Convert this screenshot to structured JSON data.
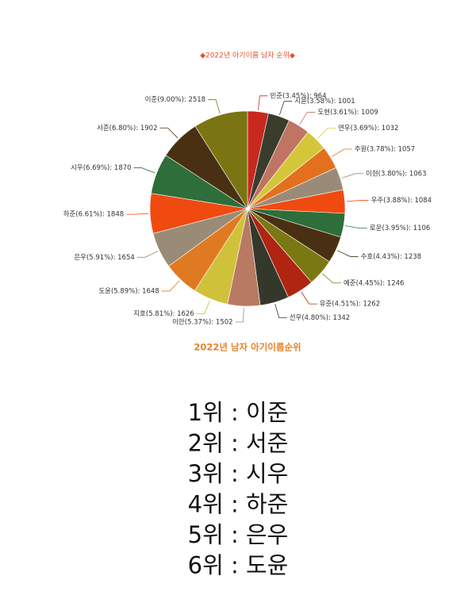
{
  "chart_data": {
    "type": "pie",
    "title": "◆2022년 아기이름 남자 순위◆",
    "subtitle": "2022년 남자 아기이름순위",
    "values": [
      964,
      1001,
      1009,
      1032,
      1057,
      1063,
      1084,
      1106,
      1238,
      1246,
      1262,
      1342,
      1502,
      1626,
      1648,
      1654,
      1848,
      1870,
      1902,
      2518
    ],
    "value_labels": [
      "민준(3.45%): 964",
      "시윤(3.58%): 1001",
      "도현(3.61%): 1009",
      "연우(3.69%): 1032",
      "주원(3.78%): 1057",
      "이현(3.80%): 1063",
      "우주(3.88%): 1084",
      "로운(3.95%): 1106",
      "수호(4.43%): 1238",
      "예준(4.45%): 1246",
      "유준(4.51%): 1262",
      "선우(4.80%): 1342",
      "이안(5.37%): 1502",
      "지호(5.81%): 1626",
      "도윤(5.89%): 1648",
      "은우(5.91%): 1654",
      "하준(6.61%): 1848",
      "시우(6.69%): 1870",
      "서준(6.80%): 1902",
      "이준(9.00%): 2518"
    ],
    "colors": [
      "#c8281e",
      "#3a3d2c",
      "#c07462",
      "#d4c63a",
      "#e2701f",
      "#9a8b78",
      "#f04a10",
      "#2e6e3a",
      "#4a3012",
      "#7a7812",
      "#b02412",
      "#34382a",
      "#b87a62",
      "#cfc23a",
      "#e07a22",
      "#9a8b76",
      "#f04a10",
      "#2e6e3a",
      "#4a3012",
      "#7a7412"
    ]
  },
  "ranking": [
    "1위 : 이준",
    "2위 : 서준",
    "3위 : 시우",
    "4위 : 하준",
    "5위 : 은우",
    "6위 : 도윤"
  ]
}
